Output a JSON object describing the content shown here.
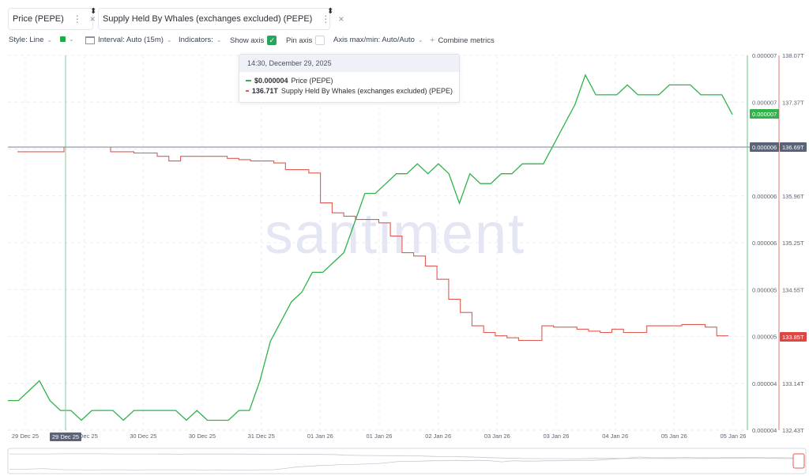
{
  "tabs": [
    {
      "label": "Price (PEPE)",
      "color": "#2fb34a"
    },
    {
      "label": "Supply Held By Whales (exchanges excluded) (PEPE)",
      "color": "#e05a52"
    }
  ],
  "toolbar": {
    "style_label": "Style: Line",
    "interval_label": "Interval: Auto (15m)",
    "indicators_label": "Indicators:",
    "show_axis_label": "Show axis",
    "show_axis_checked": true,
    "pin_axis_label": "Pin axis",
    "pin_axis_checked": false,
    "axis_minmax_label": "Axis max/min: Auto/Auto",
    "combine_label": "Combine metrics"
  },
  "tooltip": {
    "title": "14:30, December 29, 2025",
    "rows": [
      {
        "value": "$0.000004",
        "label": "Price (PEPE)",
        "color": "#2fb34a"
      },
      {
        "value": "136.71T",
        "label": "Supply Held By Whales (exchanges excluded) (PEPE)",
        "color": "#e05a52"
      }
    ]
  },
  "watermark": "santiment",
  "chart_data": {
    "type": "line",
    "x_tick_labels": [
      "29 Dec 25",
      "29 Dec 25",
      "30 Dec 25",
      "30 Dec 25",
      "31 Dec 25",
      "01 Jan 26",
      "01 Jan 26",
      "02 Jan 26",
      "03 Jan 26",
      "03 Jan 26",
      "04 Jan 26",
      "05 Jan 26",
      "05 Jan 26"
    ],
    "x_hover_label": "29 Dec 25",
    "price_axis_ticks": [
      "0.000007",
      "0.000007",
      "0.000006",
      "0.000006",
      "0.000006",
      "0.000005",
      "0.000005",
      "0.000004",
      "0.000004"
    ],
    "supply_axis_ticks": [
      "138.07T",
      "137.37T",
      "136.69T",
      "135.96T",
      "135.25T",
      "134.55T",
      "133.85T",
      "133.14T",
      "132.43T"
    ],
    "price_current_tag": "0.000007",
    "price_crosshair_tag": "0.000006",
    "supply_crosshair_tag": "136.69T",
    "supply_current_tag": "133.85T",
    "supply_ylim": [
      132.43,
      138.07
    ],
    "series": [
      {
        "name": "Price (PEPE)",
        "color": "#2fb34a",
        "values": [
          3.9e-06,
          3.9e-06,
          4e-06,
          4.1e-06,
          3.9e-06,
          3.8e-06,
          3.8e-06,
          3.7e-06,
          3.8e-06,
          3.8e-06,
          3.8e-06,
          3.7e-06,
          3.8e-06,
          3.8e-06,
          3.8e-06,
          3.8e-06,
          3.8e-06,
          3.7e-06,
          3.8e-06,
          3.7e-06,
          3.7e-06,
          3.7e-06,
          3.8e-06,
          3.8e-06,
          4.1e-06,
          4.5e-06,
          4.7e-06,
          4.9e-06,
          5e-06,
          5.2e-06,
          5.2e-06,
          5.3e-06,
          5.4e-06,
          5.7e-06,
          6e-06,
          6e-06,
          6.1e-06,
          6.2e-06,
          6.2e-06,
          6.3e-06,
          6.2e-06,
          6.3e-06,
          6.2e-06,
          5.9e-06,
          6.2e-06,
          6.1e-06,
          6.1e-06,
          6.2e-06,
          6.2e-06,
          6.3e-06,
          6.3e-06,
          6.3e-06,
          6.5e-06,
          6.7e-06,
          6.9e-06,
          7.2e-06,
          7e-06,
          7e-06,
          7e-06,
          7.1e-06,
          7e-06,
          7e-06,
          7e-06,
          7.1e-06,
          7.1e-06,
          7.1e-06,
          7e-06,
          7e-06,
          7e-06,
          6.8e-06
        ]
      },
      {
        "name": "Supply Held By Whales (exchanges excluded) (PEPE)",
        "color": "#e05a52",
        "values": [
          136.62,
          136.62,
          136.62,
          136.62,
          136.69,
          136.69,
          136.69,
          136.69,
          136.62,
          136.62,
          136.6,
          136.6,
          136.55,
          136.48,
          136.55,
          136.55,
          136.55,
          136.55,
          136.52,
          136.5,
          136.48,
          136.48,
          136.45,
          136.35,
          136.35,
          136.3,
          135.85,
          135.7,
          135.65,
          135.6,
          135.6,
          135.55,
          135.35,
          135.1,
          135.05,
          134.9,
          134.7,
          134.4,
          134.2,
          134.0,
          133.9,
          133.85,
          133.82,
          133.78,
          133.78,
          134.0,
          133.98,
          133.98,
          133.95,
          133.92,
          133.9,
          133.95,
          133.9,
          133.9,
          134.0,
          134.0,
          134.0,
          134.02,
          134.02,
          133.98,
          133.85,
          133.85
        ]
      }
    ]
  }
}
